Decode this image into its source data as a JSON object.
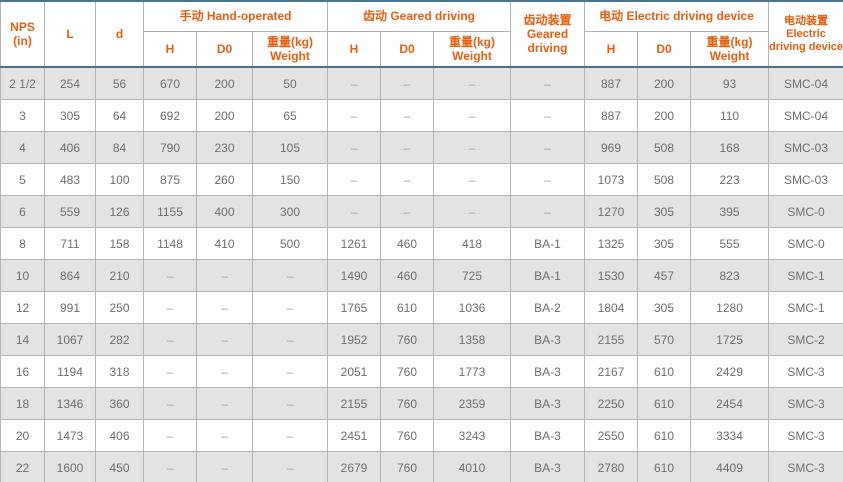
{
  "colors": {
    "accent_orange": "#e55f10",
    "header_rule_blue": "#44708c",
    "bottom_rule_blue": "#6b94ab",
    "row_shade_gray": "#e3e3e1",
    "grid_gray": "#b2b2b0"
  },
  "table": {
    "header": {
      "nps_line1": "NPS",
      "nps_line2": "(in)",
      "col_l": "L",
      "col_d": "d",
      "hand_group": "手动 Hand-operated",
      "geared_group": "齿动 Geared driving",
      "geared_device_l1": "齿动装置",
      "geared_device_l2": "Geared",
      "geared_device_l3": "driving",
      "electric_group": "电动 Electric driving device",
      "electric_device_l1": "电动装置",
      "electric_device_l2": "Electric",
      "electric_device_l3": "driving device",
      "sub_h": "H",
      "sub_d0": "D0",
      "sub_weight_l1": "重量(kg)",
      "sub_weight_l2": "Weight"
    },
    "rows": [
      [
        "2 1/2",
        "254",
        "56",
        "670",
        "200",
        "50",
        "–",
        "–",
        "–",
        "–",
        "887",
        "200",
        "93",
        "SMC-04"
      ],
      [
        "3",
        "305",
        "64",
        "692",
        "200",
        "65",
        "–",
        "–",
        "–",
        "–",
        "887",
        "200",
        "110",
        "SMC-04"
      ],
      [
        "4",
        "406",
        "84",
        "790",
        "230",
        "105",
        "–",
        "–",
        "–",
        "–",
        "969",
        "508",
        "168",
        "SMC-03"
      ],
      [
        "5",
        "483",
        "100",
        "875",
        "260",
        "150",
        "–",
        "–",
        "–",
        "–",
        "1073",
        "508",
        "223",
        "SMC-03"
      ],
      [
        "6",
        "559",
        "126",
        "1155",
        "400",
        "300",
        "–",
        "–",
        "–",
        "–",
        "1270",
        "305",
        "395",
        "SMC-0"
      ],
      [
        "8",
        "711",
        "158",
        "1148",
        "410",
        "500",
        "1261",
        "460",
        "418",
        "BA-1",
        "1325",
        "305",
        "555",
        "SMC-0"
      ],
      [
        "10",
        "864",
        "210",
        "–",
        "–",
        "–",
        "1490",
        "460",
        "725",
        "BA-1",
        "1530",
        "457",
        "823",
        "SMC-1"
      ],
      [
        "12",
        "991",
        "250",
        "–",
        "–",
        "–",
        "1765",
        "610",
        "1036",
        "BA-2",
        "1804",
        "305",
        "1280",
        "SMC-1"
      ],
      [
        "14",
        "1067",
        "282",
        "–",
        "–",
        "–",
        "1952",
        "760",
        "1358",
        "BA-3",
        "2155",
        "570",
        "1725",
        "SMC-2"
      ],
      [
        "16",
        "1194",
        "318",
        "–",
        "–",
        "–",
        "2051",
        "760",
        "1773",
        "BA-3",
        "2167",
        "610",
        "2429",
        "SMC-3"
      ],
      [
        "18",
        "1346",
        "360",
        "–",
        "–",
        "–",
        "2155",
        "760",
        "2359",
        "BA-3",
        "2250",
        "610",
        "2454",
        "SMC-3"
      ],
      [
        "20",
        "1473",
        "406",
        "–",
        "–",
        "–",
        "2451",
        "760",
        "3243",
        "BA-3",
        "2550",
        "610",
        "3334",
        "SMC-3"
      ],
      [
        "22",
        "1600",
        "450",
        "–",
        "–",
        "–",
        "2679",
        "760",
        "4010",
        "BA-3",
        "2780",
        "610",
        "4409",
        "SMC-3"
      ]
    ]
  }
}
